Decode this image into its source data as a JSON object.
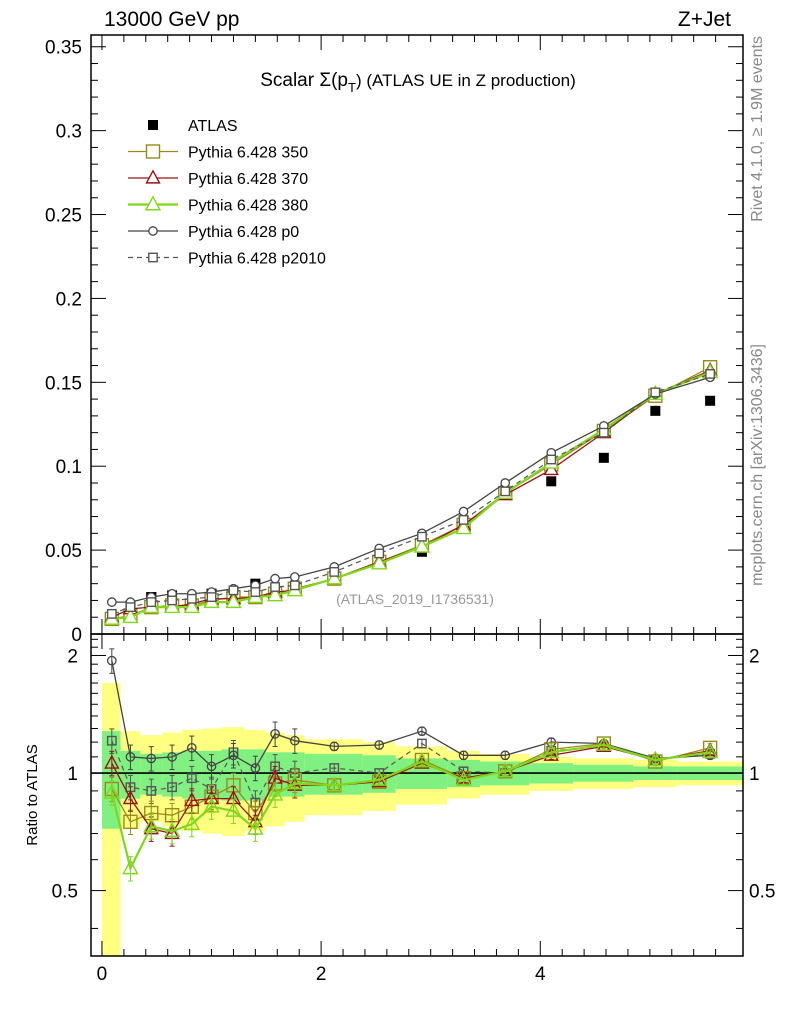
{
  "header": {
    "left": "13000 GeV pp",
    "right": "Z+Jet"
  },
  "side_texts": {
    "rivet": "Rivet 4.1.0, ≥ 1.9M events",
    "mcplots": "mcplots.cern.ch [arXiv:1306.3436]"
  },
  "colors": {
    "atlas": "#000000",
    "p350": "#9a8a1a",
    "p370": "#9b1218",
    "p380": "#80d81a",
    "p0": "#444444",
    "p2010": "#555555",
    "band_green": "#80f080",
    "band_yellow": "#ffff80"
  },
  "chart_data": [
    {
      "type": "line",
      "title": "Scalar Σ(p_T) (ATLAS UE in Z production)",
      "title_main": "Scalar Σ(p",
      "title_sub": "T",
      "title_tail": ") (ATLAS UE in Z production)",
      "watermark": "(ATLAS_2019_I1736531)",
      "xlabel": "",
      "ylabel": "",
      "xlim": [
        -0.1,
        5.85
      ],
      "ylim": [
        0,
        0.357
      ],
      "yticks": [
        0,
        0.05,
        0.1,
        0.15,
        0.2,
        0.25,
        0.3,
        0.35
      ],
      "ytick_labels": [
        "0",
        "0.05",
        "0.1",
        "0.15",
        "0.2",
        "0.25",
        "0.3",
        "0.35"
      ],
      "legend_position": "top-left",
      "x": [
        0.09,
        0.26,
        0.45,
        0.64,
        0.82,
        1.0,
        1.2,
        1.4,
        1.58,
        1.76,
        2.12,
        2.53,
        2.92,
        3.3,
        3.68,
        4.1,
        4.58,
        5.05,
        5.55
      ],
      "series": [
        {
          "name": "ATLAS",
          "key": "atlas",
          "values": [
            0.01,
            0.017,
            0.022,
            0.023,
            0.022,
            0.024,
            0.024,
            0.03,
            0.025,
            0.027,
            0.035,
            0.044,
            0.049,
            0.067,
            0.085,
            0.091,
            0.105,
            0.133,
            0.139
          ]
        },
        {
          "name": "Pythia 6.428 350",
          "key": "p350",
          "values": [
            0.009,
            0.011,
            0.016,
            0.017,
            0.017,
            0.02,
            0.022,
            0.022,
            0.024,
            0.027,
            0.033,
            0.043,
            0.053,
            0.065,
            0.084,
            0.101,
            0.121,
            0.142,
            0.159
          ]
        },
        {
          "name": "Pythia 6.428 370",
          "key": "p370",
          "values": [
            0.01,
            0.015,
            0.016,
            0.016,
            0.018,
            0.021,
            0.021,
            0.022,
            0.025,
            0.026,
            0.033,
            0.043,
            0.052,
            0.065,
            0.083,
            0.098,
            0.12,
            0.143,
            0.157
          ]
        },
        {
          "name": "Pythia 6.428 380",
          "key": "p380",
          "values": [
            0.009,
            0.01,
            0.016,
            0.016,
            0.016,
            0.019,
            0.019,
            0.022,
            0.023,
            0.026,
            0.033,
            0.042,
            0.052,
            0.063,
            0.084,
            0.102,
            0.122,
            0.143,
            0.156
          ]
        },
        {
          "name": "Pythia 6.428 p0",
          "key": "p0",
          "values": [
            0.019,
            0.019,
            0.022,
            0.024,
            0.024,
            0.025,
            0.027,
            0.029,
            0.033,
            0.034,
            0.04,
            0.051,
            0.06,
            0.073,
            0.09,
            0.108,
            0.124,
            0.143,
            0.153
          ]
        },
        {
          "name": "Pythia 6.428 p2010",
          "key": "p2010",
          "values": [
            0.012,
            0.016,
            0.019,
            0.02,
            0.021,
            0.022,
            0.026,
            0.025,
            0.028,
            0.029,
            0.037,
            0.048,
            0.058,
            0.068,
            0.085,
            0.104,
            0.12,
            0.144,
            0.155
          ]
        }
      ]
    },
    {
      "type": "line",
      "title": "",
      "xlabel": "",
      "ylabel": "Ratio to ATLAS",
      "xlim": [
        -0.1,
        5.85
      ],
      "ylim": [
        0.34,
        2.27
      ],
      "xticks": [
        0,
        2,
        4
      ],
      "xtick_labels": [
        "0",
        "2",
        "4"
      ],
      "yticks": [
        0.5,
        1,
        2
      ],
      "ytick_labels": [
        "0.5",
        "1",
        "2"
      ],
      "x": [
        0.09,
        0.26,
        0.45,
        0.64,
        0.82,
        1.0,
        1.2,
        1.4,
        1.58,
        1.76,
        2.12,
        2.53,
        2.92,
        3.3,
        3.68,
        4.1,
        4.58,
        5.05,
        5.55
      ],
      "bin_edges": [
        0.0,
        0.17,
        0.35,
        0.55,
        0.73,
        0.91,
        1.09,
        1.3,
        1.49,
        1.67,
        1.85,
        2.38,
        2.68,
        3.15,
        3.45,
        3.9,
        4.3,
        4.85,
        5.25,
        5.85
      ],
      "band_green": {
        "lo": [
          0.72,
          0.86,
          0.88,
          0.87,
          0.86,
          0.86,
          0.85,
          0.85,
          0.87,
          0.87,
          0.88,
          0.89,
          0.91,
          0.92,
          0.93,
          0.94,
          0.95,
          0.96,
          0.96
        ],
        "hi": [
          1.28,
          1.14,
          1.12,
          1.13,
          1.14,
          1.14,
          1.15,
          1.15,
          1.13,
          1.13,
          1.12,
          1.11,
          1.09,
          1.08,
          1.07,
          1.06,
          1.05,
          1.04,
          1.04
        ]
      },
      "band_yellow": {
        "lo": [
          0.34,
          0.72,
          0.75,
          0.73,
          0.71,
          0.7,
          0.69,
          0.71,
          0.73,
          0.75,
          0.78,
          0.8,
          0.83,
          0.86,
          0.88,
          0.9,
          0.91,
          0.92,
          0.93
        ],
        "hi": [
          1.7,
          1.28,
          1.25,
          1.27,
          1.29,
          1.3,
          1.31,
          1.29,
          1.27,
          1.25,
          1.22,
          1.2,
          1.17,
          1.14,
          1.12,
          1.1,
          1.09,
          1.08,
          1.07
        ]
      },
      "series": [
        {
          "name": "Pythia 6.428 350",
          "key": "p350",
          "values": [
            0.91,
            0.75,
            0.79,
            0.78,
            0.82,
            0.87,
            0.93,
            0.79,
            0.94,
            0.96,
            0.93,
            0.95,
            1.08,
            0.97,
            1.01,
            1.15,
            1.19,
            1.07,
            1.16
          ]
        },
        {
          "name": "Pythia 6.428 370",
          "key": "p370",
          "values": [
            1.06,
            0.86,
            0.72,
            0.7,
            0.85,
            0.86,
            0.86,
            0.75,
            0.97,
            0.93,
            0.93,
            0.95,
            1.06,
            0.97,
            1.01,
            1.11,
            1.17,
            1.08,
            1.14
          ]
        },
        {
          "name": "Pythia 6.428 380",
          "key": "p380",
          "values": [
            0.89,
            0.57,
            0.73,
            0.71,
            0.74,
            0.82,
            0.8,
            0.72,
            0.88,
            0.94,
            0.93,
            0.96,
            1.07,
            0.96,
            1.01,
            1.13,
            1.18,
            1.08,
            1.13
          ]
        },
        {
          "name": "Pythia 6.428 p0",
          "key": "p0",
          "values": [
            1.94,
            1.1,
            1.09,
            1.1,
            1.16,
            1.04,
            1.11,
            1.03,
            1.26,
            1.21,
            1.17,
            1.18,
            1.28,
            1.11,
            1.11,
            1.2,
            1.19,
            1.09,
            1.11
          ]
        },
        {
          "name": "Pythia 6.428 p2010",
          "key": "p2010",
          "values": [
            1.21,
            0.92,
            0.9,
            0.92,
            0.97,
            0.91,
            1.13,
            0.84,
            1.04,
            1.0,
            1.03,
            1.0,
            1.19,
            1.01,
            1.0,
            1.14,
            1.17,
            1.08,
            1.12
          ]
        }
      ]
    }
  ]
}
